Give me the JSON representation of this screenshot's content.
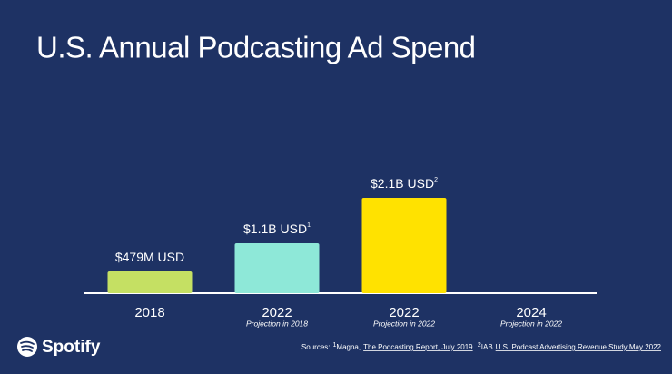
{
  "chart_data": {
    "type": "bar",
    "title": "U.S. Annual Podcasting Ad Spend",
    "categories": [
      "2018",
      "2022",
      "2022",
      "2024"
    ],
    "category_subtitles": [
      null,
      "Projection in 2018",
      "Projection in 2022",
      "Projection in 2022"
    ],
    "values": [
      479000000,
      1100000000,
      2100000000,
      null
    ],
    "value_labels": [
      "$479M USD",
      "$1.1B USD",
      "$2.1B USD",
      null
    ],
    "value_label_notes": [
      null,
      "1",
      "2",
      null
    ],
    "colors": [
      "#c5e063",
      "#8ee8d8",
      "#ffe200",
      null
    ],
    "sources": {
      "prefix": "Sources:",
      "items": [
        {
          "note": "1",
          "text": "Magna,",
          "link": "The Podcasting Report, July 2019",
          "end": "."
        },
        {
          "note": "2",
          "text": "IAB",
          "link": "U.S. Podcast Advertising Revenue Study May 2022"
        }
      ]
    },
    "logo": "Spotify"
  }
}
